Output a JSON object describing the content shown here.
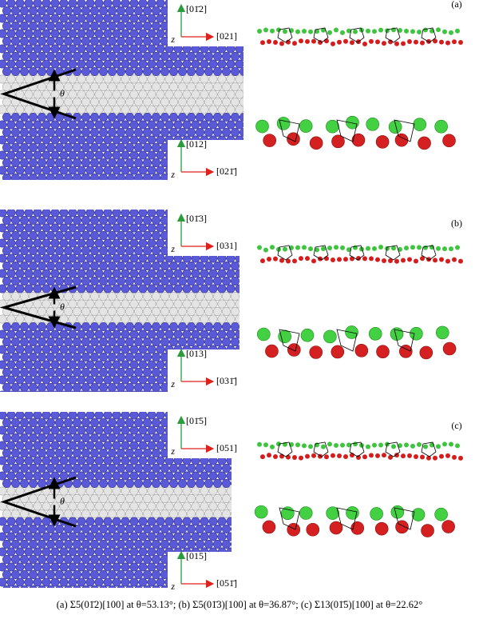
{
  "panels": [
    {
      "label": "(a)",
      "axes_top": {
        "up": "[01̄2]",
        "right": "[021]",
        "z": "z"
      },
      "axes_bottom": {
        "up": "[012]",
        "right": "[021̄]",
        "z": "z"
      },
      "angle": "θ"
    },
    {
      "label": "(b)",
      "axes_top": {
        "up": "[01̄3]",
        "right": "[031]",
        "z": "z"
      },
      "axes_bottom": {
        "up": "[013]",
        "right": "[031̄]",
        "z": "z"
      },
      "angle": "θ"
    },
    {
      "label": "(c)",
      "axes_top": {
        "up": "[01̄5]",
        "right": "[051]",
        "z": "z"
      },
      "axes_bottom": {
        "up": "[015]",
        "right": "[051̄]",
        "z": "z"
      },
      "angle": "θ"
    }
  ],
  "caption": "(a) Σ5(01̄2)[100]  at  θ=53.13°; (b) Σ5(01̄3)[100] at θ=36.87°; (c) Σ13(01̄5)[100] at θ=22.62°"
}
